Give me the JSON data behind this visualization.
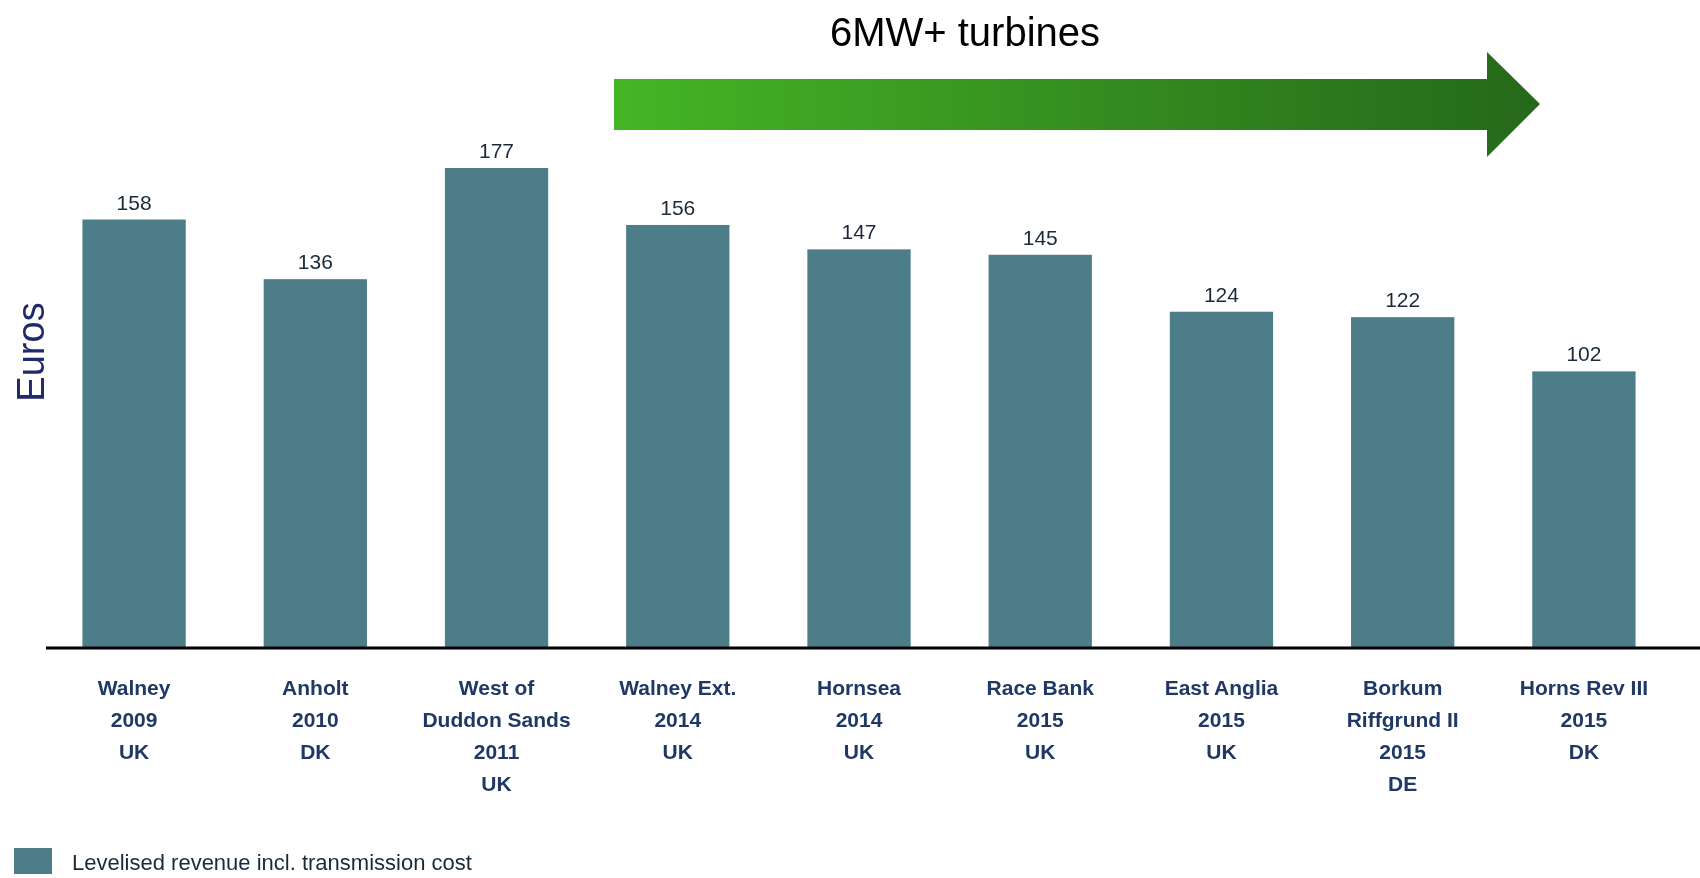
{
  "chart_data": {
    "type": "bar",
    "ylabel": "Euros",
    "annotations": [
      "6MW+ turbines"
    ],
    "categories": [
      "Walney\n2009\nUK",
      "Anholt\n2010\nDK",
      "West of\nDuddon Sands\n2011\nUK",
      "Walney Ext.\n2014\nUK",
      "Hornsea\n2014\nUK",
      "Race Bank\n2015\nUK",
      "East Anglia\n2015\nUK",
      "Borkum\nRiffgrund II\n2015\nDE",
      "Horns Rev III\n2015\nDK"
    ],
    "series": [
      {
        "name": "Levelised revenue incl. transmission cost",
        "color": "#4d7d88",
        "values": [
          158,
          136,
          177,
          156,
          147,
          145,
          124,
          122,
          102
        ]
      }
    ],
    "data_labels": true,
    "legend": "bottom left"
  }
}
